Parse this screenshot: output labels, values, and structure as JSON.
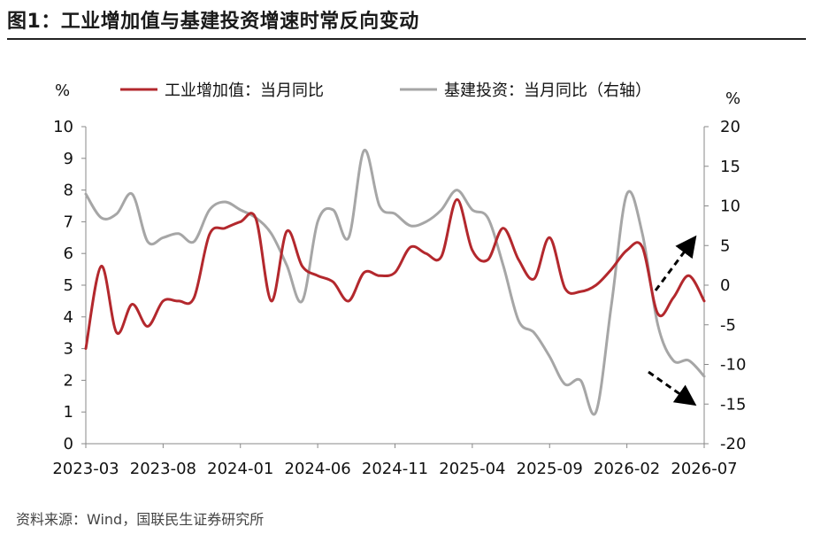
{
  "page": {
    "title": "图1：工业增加值与基建投资增速时常反向变动",
    "source": "资料来源：Wind，国联民生证券研究所"
  },
  "chart_data": {
    "type": "line",
    "title": "图1：工业增加值与基建投资增速时常反向变动",
    "left_axis": {
      "unit": "%",
      "range": [
        0,
        10
      ],
      "ticks": [
        0,
        1,
        2,
        3,
        4,
        5,
        6,
        7,
        8,
        9,
        10
      ]
    },
    "right_axis": {
      "unit": "%",
      "range": [
        -20,
        20
      ],
      "ticks": [
        -20,
        -15,
        -10,
        -5,
        0,
        5,
        10,
        15,
        20
      ]
    },
    "x_tick_labels": [
      "2023-03",
      "2023-08",
      "2024-01",
      "2024-06",
      "2024-11",
      "2025-04",
      "2025-09",
      "2026-02",
      "2026-07"
    ],
    "x_range": [
      "2023-03",
      "2026-07"
    ],
    "grid": false,
    "legend_position": "top",
    "colors": {
      "industrial": "#b3282d",
      "infra": "#a6a6a6",
      "arrow": "#000000"
    },
    "series": [
      {
        "name": "工业增加值：当月同比",
        "axis": "left",
        "x": [
          "2023-03",
          "2023-04",
          "2023-05",
          "2023-06",
          "2023-07",
          "2023-08",
          "2023-09",
          "2023-10",
          "2023-11",
          "2023-12",
          "2024-01",
          "2024-02",
          "2024-03",
          "2024-04",
          "2024-05",
          "2024-06",
          "2024-07",
          "2024-08",
          "2024-09",
          "2024-10",
          "2024-11",
          "2024-12",
          "2025-01",
          "2025-02",
          "2025-03",
          "2025-04",
          "2025-05",
          "2025-06",
          "2025-07",
          "2025-08",
          "2025-09",
          "2025-10",
          "2025-11",
          "2025-12",
          "2026-01",
          "2026-02",
          "2026-03",
          "2026-04",
          "2026-05",
          "2026-06",
          "2026-07"
        ],
        "values": [
          3.0,
          5.6,
          3.5,
          4.4,
          3.7,
          4.5,
          4.5,
          4.6,
          6.6,
          6.8,
          7.0,
          7.1,
          4.5,
          6.7,
          5.6,
          5.3,
          5.1,
          4.5,
          5.4,
          5.3,
          5.4,
          6.2,
          6.0,
          5.9,
          7.7,
          6.1,
          5.8,
          6.8,
          5.8,
          5.2,
          6.5,
          4.9,
          4.8,
          5.0,
          5.5,
          6.1,
          6.2,
          4.1,
          4.6,
          5.3,
          4.5
        ]
      },
      {
        "name": "基建投资：当月同比（右轴）",
        "axis": "right",
        "x": [
          "2023-03",
          "2023-04",
          "2023-05",
          "2023-06",
          "2023-07",
          "2023-08",
          "2023-09",
          "2023-10",
          "2023-11",
          "2023-12",
          "2024-01",
          "2024-02",
          "2024-03",
          "2024-04",
          "2024-05",
          "2024-06",
          "2024-07",
          "2024-08",
          "2024-09",
          "2024-10",
          "2024-11",
          "2024-12",
          "2025-01",
          "2025-02",
          "2025-03",
          "2025-04",
          "2025-05",
          "2025-06",
          "2025-07",
          "2025-08",
          "2025-09",
          "2025-10",
          "2025-11",
          "2025-12",
          "2026-01",
          "2026-02",
          "2026-03",
          "2026-04",
          "2026-05",
          "2026-06",
          "2026-07"
        ],
        "values": [
          11.5,
          8.5,
          9.0,
          11.5,
          5.5,
          6.0,
          6.5,
          5.5,
          9.5,
          10.5,
          9.5,
          8.5,
          6.5,
          2.5,
          -2.0,
          8.0,
          9.5,
          6.0,
          17.0,
          10.0,
          9.0,
          7.5,
          8.0,
          9.5,
          12.0,
          9.5,
          8.5,
          2.5,
          -4.5,
          -6.0,
          -9.0,
          -12.5,
          -12.0,
          -16.0,
          -2.5,
          11.5,
          6.5,
          -5.0,
          -9.5,
          -9.5,
          -11.5
        ]
      }
    ]
  }
}
